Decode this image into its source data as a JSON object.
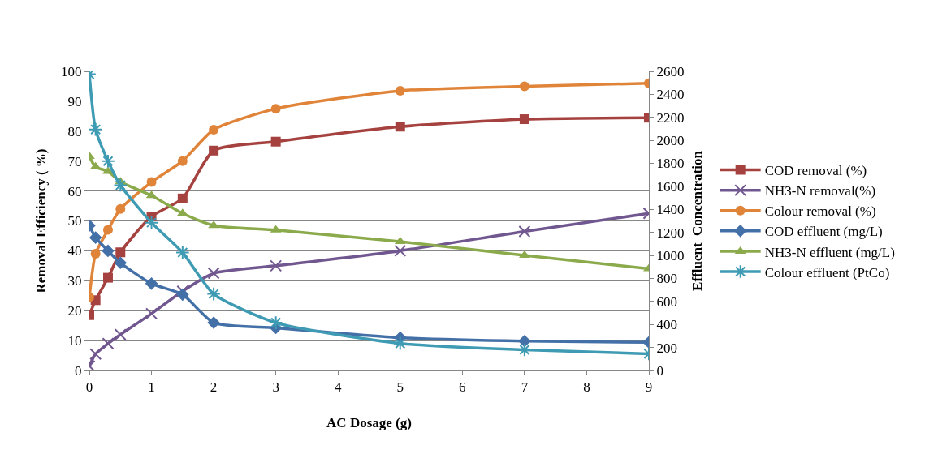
{
  "chart_data": {
    "type": "line",
    "xlabel": "AC Dosage (g)",
    "ylabel": "Removal Efficiency ( %)",
    "y2label": "Effluent  Concentration",
    "x": [
      0,
      0.1,
      0.3,
      0.5,
      1,
      1.5,
      2,
      3,
      5,
      7,
      9
    ],
    "xlim": [
      0,
      9
    ],
    "xticks": [
      0,
      1,
      2,
      3,
      4,
      5,
      6,
      7,
      8,
      9
    ],
    "ylim": [
      0,
      100
    ],
    "yticks": [
      0,
      10,
      20,
      30,
      40,
      50,
      60,
      70,
      80,
      90,
      100
    ],
    "y2lim": [
      0,
      2600
    ],
    "y2ticks": [
      0,
      200,
      400,
      600,
      800,
      1000,
      1200,
      1400,
      1600,
      1800,
      2000,
      2200,
      2400,
      2600
    ],
    "grid": "y",
    "legend": "right",
    "series": [
      {
        "name": "COD removal (%)",
        "color": "#a5423f",
        "marker": "square",
        "values": [
          18.5,
          23.5,
          31,
          39.5,
          51.5,
          57.5,
          73.5,
          76.5,
          81.5,
          84,
          84.5
        ]
      },
      {
        "name": "NH3-N removal(%)",
        "color": "#71578f",
        "marker": "cross",
        "values": [
          1.5,
          5.5,
          9,
          12,
          19,
          26.5,
          32.5,
          35,
          40,
          46.5,
          52.5
        ]
      },
      {
        "name": "Colour removal (%)",
        "color": "#e0843a",
        "marker": "circle",
        "values": [
          24.5,
          39,
          47,
          54,
          63,
          70,
          80.5,
          87.5,
          93.5,
          95,
          96
        ]
      },
      {
        "name": "COD effluent (mg/L)",
        "color": "#4470a8",
        "marker": "diamond",
        "axis": "y2",
        "values": [
          1260,
          1155,
          1040,
          935,
          755,
          660,
          415,
          370,
          285,
          255,
          245
        ]
      },
      {
        "name": "NH3-N effluent (mg/L)",
        "color": "#8aaa4b",
        "marker": "triangle",
        "axis": "y2",
        "values": [
          1860,
          1770,
          1730,
          1640,
          1520,
          1365,
          1260,
          1220,
          1120,
          1000,
          885
        ]
      },
      {
        "name": "Colour effluent (PtCo)",
        "color": "#3e9bb3",
        "marker": "cross",
        "axis": "y2",
        "values": [
          2575,
          2095,
          1820,
          1610,
          1285,
          1025,
          665,
          415,
          235,
          180,
          145
        ]
      }
    ]
  }
}
